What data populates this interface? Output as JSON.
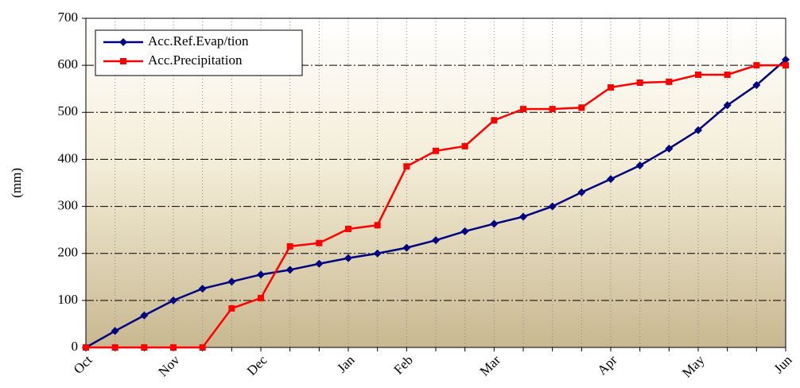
{
  "chart_data": {
    "type": "line",
    "y_label": "(mm)",
    "categories": [
      "Oct",
      null,
      null,
      "Nov",
      null,
      null,
      "Dec",
      null,
      null,
      "Jan",
      null,
      "Feb",
      null,
      null,
      "Mar",
      null,
      null,
      null,
      "Apr",
      null,
      null,
      "May",
      null,
      null,
      "Jun"
    ],
    "series": [
      {
        "name": "Acc.Ref.Evap/tion",
        "color": "#000080",
        "marker": "diamond",
        "values": [
          0,
          35,
          68,
          100,
          125,
          140,
          155,
          165,
          178,
          190,
          200,
          212,
          228,
          247,
          263,
          278,
          300,
          330,
          358,
          387,
          423,
          462,
          515,
          558,
          612
        ]
      },
      {
        "name": "Acc.Precipitation",
        "color": "#ff0000",
        "marker": "square",
        "values": [
          0,
          0,
          0,
          0,
          0,
          83,
          105,
          215,
          222,
          252,
          260,
          385,
          418,
          428,
          483,
          507,
          507,
          510,
          553,
          563,
          565,
          580,
          580,
          600,
          600
        ]
      }
    ],
    "ylim": [
      0,
      700
    ],
    "yticks": [
      0,
      100,
      200,
      300,
      400,
      500,
      600,
      700
    ],
    "grid": true,
    "legend": "top-left"
  }
}
